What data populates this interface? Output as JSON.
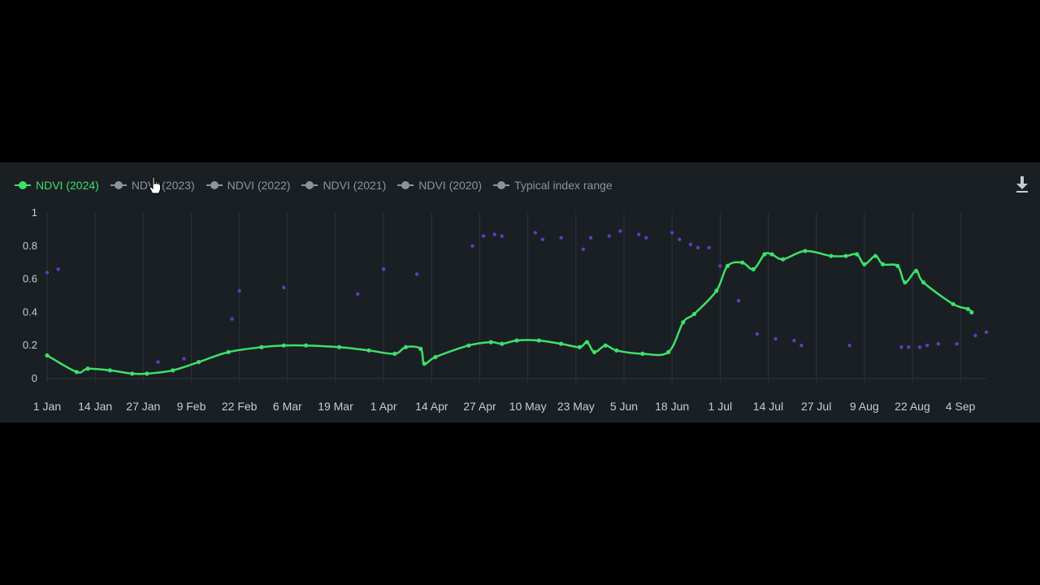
{
  "legend": [
    {
      "label": "NDVI (2024)",
      "active": true
    },
    {
      "label": "NDVI (2023)",
      "active": false
    },
    {
      "label": "NDVI (2022)",
      "active": false
    },
    {
      "label": "NDVI (2021)",
      "active": false
    },
    {
      "label": "NDVI (2020)",
      "active": false
    },
    {
      "label": "Typical index range",
      "active": false
    }
  ],
  "colors": {
    "line_2024": "#3ee06a",
    "scatter_other": "#5b3fc4",
    "grid": "#2d3439",
    "axis_text": "#c7ccd1"
  },
  "icons": {
    "download": "download-icon",
    "cursor": "hand-pointer-icon"
  },
  "chart_data": {
    "type": "line",
    "x_axis": {
      "min": 1,
      "max": 255,
      "tick_days": [
        1,
        14,
        27,
        40,
        53,
        66,
        79,
        92,
        105,
        118,
        131,
        144,
        157,
        170,
        183,
        196,
        209,
        222,
        235,
        248
      ],
      "tick_labels": [
        "1 Jan",
        "14 Jan",
        "27 Jan",
        "9 Feb",
        "22 Feb",
        "6 Mar",
        "19 Mar",
        "1 Apr",
        "14 Apr",
        "27 Apr",
        "10 May",
        "23 May",
        "5 Jun",
        "18 Jun",
        "1 Jul",
        "14 Jul",
        "27 Jul",
        "9 Aug",
        "22 Aug",
        "4 Sep"
      ]
    },
    "y_axis": {
      "min": 0,
      "max": 1,
      "ticks": [
        0,
        0.2,
        0.4,
        0.6,
        0.8,
        1
      ],
      "tick_labels": [
        "0",
        "0.2",
        "0.4",
        "0.6",
        "0.8",
        "1"
      ]
    },
    "grid": true,
    "legend_position": "top-left",
    "series": [
      {
        "name": "NDVI (2024)",
        "points": [
          [
            1,
            0.14
          ],
          [
            9,
            0.04
          ],
          [
            12,
            0.06
          ],
          [
            18,
            0.05
          ],
          [
            24,
            0.03
          ],
          [
            28,
            0.03
          ],
          [
            35,
            0.05
          ],
          [
            42,
            0.1
          ],
          [
            50,
            0.16
          ],
          [
            59,
            0.19
          ],
          [
            65,
            0.2
          ],
          [
            71,
            0.2
          ],
          [
            80,
            0.19
          ],
          [
            88,
            0.17
          ],
          [
            95,
            0.15
          ],
          [
            98,
            0.19
          ],
          [
            102,
            0.18
          ],
          [
            103,
            0.09
          ],
          [
            106,
            0.13
          ],
          [
            115,
            0.2
          ],
          [
            121,
            0.22
          ],
          [
            124,
            0.21
          ],
          [
            128,
            0.23
          ],
          [
            134,
            0.23
          ],
          [
            140,
            0.21
          ],
          [
            145,
            0.19
          ],
          [
            147,
            0.22
          ],
          [
            149,
            0.16
          ],
          [
            152,
            0.2
          ],
          [
            155,
            0.17
          ],
          [
            162,
            0.15
          ],
          [
            169,
            0.16
          ],
          [
            173,
            0.34
          ],
          [
            176,
            0.39
          ],
          [
            182,
            0.53
          ],
          [
            185,
            0.68
          ],
          [
            189,
            0.7
          ],
          [
            192,
            0.66
          ],
          [
            195,
            0.75
          ],
          [
            197,
            0.75
          ],
          [
            200,
            0.72
          ],
          [
            206,
            0.77
          ],
          [
            213,
            0.74
          ],
          [
            217,
            0.74
          ],
          [
            220,
            0.75
          ],
          [
            222,
            0.69
          ],
          [
            225,
            0.74
          ],
          [
            227,
            0.69
          ],
          [
            231,
            0.68
          ],
          [
            233,
            0.58
          ],
          [
            236,
            0.65
          ],
          [
            238,
            0.58
          ],
          [
            246,
            0.45
          ],
          [
            250,
            0.42
          ],
          [
            251,
            0.4
          ]
        ]
      },
      {
        "name": "NDVI (2023)",
        "points": [
          [
            1,
            0.64
          ],
          [
            4,
            0.66
          ],
          [
            31,
            0.1
          ],
          [
            38,
            0.12
          ],
          [
            51,
            0.36
          ],
          [
            53,
            0.53
          ],
          [
            65,
            0.55
          ],
          [
            85,
            0.51
          ],
          [
            92,
            0.66
          ],
          [
            101,
            0.63
          ],
          [
            116,
            0.8
          ],
          [
            119,
            0.86
          ],
          [
            122,
            0.87
          ],
          [
            124,
            0.86
          ],
          [
            133,
            0.88
          ],
          [
            135,
            0.84
          ],
          [
            140,
            0.85
          ],
          [
            146,
            0.78
          ],
          [
            148,
            0.85
          ],
          [
            153,
            0.86
          ],
          [
            156,
            0.89
          ],
          [
            161,
            0.87
          ],
          [
            163,
            0.85
          ],
          [
            170,
            0.88
          ],
          [
            172,
            0.84
          ],
          [
            175,
            0.81
          ],
          [
            177,
            0.79
          ],
          [
            180,
            0.79
          ],
          [
            183,
            0.68
          ],
          [
            188,
            0.47
          ],
          [
            193,
            0.27
          ],
          [
            198,
            0.24
          ],
          [
            203,
            0.23
          ],
          [
            205,
            0.2
          ],
          [
            218,
            0.2
          ],
          [
            232,
            0.19
          ],
          [
            234,
            0.19
          ],
          [
            237,
            0.19
          ],
          [
            239,
            0.2
          ],
          [
            242,
            0.21
          ],
          [
            247,
            0.21
          ],
          [
            252,
            0.26
          ],
          [
            255,
            0.28
          ]
        ]
      }
    ]
  }
}
